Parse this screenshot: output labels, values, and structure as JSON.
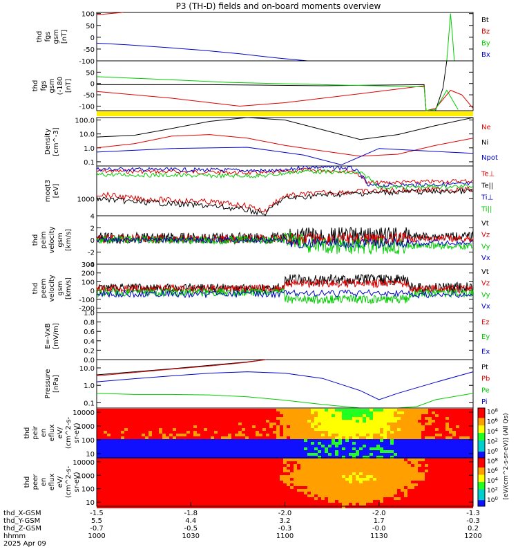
{
  "title": "P3 (TH-D) fields and on-board moments overview",
  "colors": {
    "black": "#000000",
    "red": "#dd0000",
    "green": "#00cc00",
    "blue": "#0000cc",
    "yellow": "#ffee00"
  },
  "chart_data": [
    {
      "type": "line",
      "panel": "fgs",
      "ylabel": [
        "thd",
        "fgs",
        "gsm",
        "[nT]"
      ],
      "yticks": [
        100,
        50,
        0,
        -50,
        -100
      ],
      "ylim": [
        -100,
        105
      ],
      "legend": [
        {
          "label": "Bt",
          "color": "black"
        },
        {
          "label": "Bz",
          "color": "red"
        },
        {
          "label": "By",
          "color": "green"
        },
        {
          "label": "Bx",
          "color": "blue"
        }
      ],
      "series": [
        {
          "name": "Bz",
          "color": "red",
          "x": [
            0,
            0.07
          ],
          "y": [
            95,
            105
          ]
        },
        {
          "name": "Bx",
          "color": "blue",
          "x": [
            0,
            0.08,
            0.18,
            0.28,
            0.38,
            0.48,
            0.56
          ],
          "y": [
            -25,
            -32,
            -43,
            -55,
            -70,
            -88,
            -100
          ]
        },
        {
          "name": "By",
          "color": "green",
          "x": [
            0.93,
            0.935,
            0.94,
            0.945,
            0.95
          ],
          "y": [
            -100,
            0,
            100,
            10,
            -100
          ]
        }
      ]
    },
    {
      "type": "line",
      "panel": "fgs-zoom",
      "ylabel": [
        "thd",
        "fgs",
        "gsm",
        "(-180",
        "[nT]"
      ],
      "yticks": [
        50,
        0,
        -50,
        -100
      ],
      "ylim": [
        -120,
        100
      ],
      "series": [
        {
          "name": "Bt",
          "color": "black",
          "x": [
            0,
            0.3,
            0.6,
            0.87,
            0.875,
            0.9,
            0.92,
            0.93
          ],
          "y": [
            -5,
            -5,
            -10,
            -5,
            -120,
            -120,
            -20,
            100
          ]
        },
        {
          "name": "Bz",
          "color": "red",
          "x": [
            0,
            0.2,
            0.38,
            0.5,
            0.7,
            0.87,
            0.875,
            0.9,
            0.94,
            0.97,
            1
          ],
          "y": [
            -35,
            -65,
            -100,
            -85,
            -45,
            -10,
            -120,
            -110,
            -30,
            -50,
            -110
          ]
        },
        {
          "name": "By",
          "color": "green",
          "x": [
            0,
            0.15,
            0.35,
            0.6,
            0.87,
            0.875,
            0.9,
            0.93,
            0.96
          ],
          "y": [
            30,
            20,
            5,
            -5,
            -15,
            -120,
            -115,
            -30,
            -115
          ]
        }
      ]
    },
    {
      "type": "line",
      "panel": "density",
      "log": true,
      "ylabel": [
        "Density",
        "[cm^-3]"
      ],
      "yticks": [
        "100.0",
        "10.0",
        "1.0",
        "0.1"
      ],
      "ylim": [
        0.05,
        150
      ],
      "legend": [
        {
          "label": "Ne",
          "color": "red"
        },
        {
          "label": "Ni",
          "color": "black"
        },
        {
          "label": "Npot",
          "color": "blue"
        }
      ],
      "series": [
        {
          "name": "Ni",
          "color": "black",
          "x": [
            0,
            0.1,
            0.2,
            0.3,
            0.4,
            0.5,
            0.6,
            0.7,
            0.8,
            0.9,
            1
          ],
          "y": [
            6,
            8,
            25,
            80,
            150,
            100,
            20,
            4,
            9,
            40,
            150
          ]
        },
        {
          "name": "Ne",
          "color": "red",
          "x": [
            0,
            0.1,
            0.2,
            0.3,
            0.4,
            0.5,
            0.6,
            0.7,
            0.8,
            0.9,
            1
          ],
          "y": [
            1,
            2,
            7,
            9,
            5,
            1.5,
            0.6,
            0.25,
            0.35,
            1.5,
            5
          ]
        },
        {
          "name": "Npot",
          "color": "blue",
          "x": [
            0,
            0.2,
            0.4,
            0.55,
            0.65,
            0.75,
            1
          ],
          "y": [
            0.5,
            0.9,
            1.1,
            0.3,
            0.06,
            0.9,
            0.4
          ]
        }
      ]
    },
    {
      "type": "line",
      "panel": "temperature",
      "log": true,
      "ylabel": [
        "moqt3",
        "[eV]"
      ],
      "yticks": [
        "1000"
      ],
      "ylim": [
        300,
        10000
      ],
      "legend": [
        {
          "label": "Te⊥",
          "color": "red"
        },
        {
          "label": "Te||",
          "color": "black"
        },
        {
          "label": "Ti⊥",
          "color": "blue"
        },
        {
          "label": "Ti||",
          "color": "green"
        }
      ]
    },
    {
      "type": "line",
      "panel": "velocity-esa-i",
      "ylabel": [
        "thd",
        "peim",
        "velocity",
        "gsm",
        "[km/s]"
      ],
      "yticks": [
        4,
        2,
        0,
        -2,
        -4
      ],
      "ylim": [
        -4,
        4
      ],
      "legend": [
        {
          "label": "Vt",
          "color": "black"
        },
        {
          "label": "Vz",
          "color": "red"
        },
        {
          "label": "Vy",
          "color": "green"
        },
        {
          "label": "Vx",
          "color": "blue"
        }
      ]
    },
    {
      "type": "line",
      "panel": "velocity-esa-e",
      "ylabel": [
        "thd",
        "peem",
        "velocity",
        "gsm",
        "[km/s]"
      ],
      "yticks": [
        300,
        200,
        100,
        0,
        -100,
        -200
      ],
      "ylim": [
        -250,
        300
      ],
      "legend": [
        {
          "label": "Vt",
          "color": "black"
        },
        {
          "label": "Vz",
          "color": "red"
        },
        {
          "label": "Vy",
          "color": "green"
        },
        {
          "label": "Vx",
          "color": "blue"
        }
      ]
    },
    {
      "type": "line",
      "panel": "efield",
      "ylabel": [
        "E=-VxB",
        "[mV/m]"
      ],
      "yticks": [
        "1.0",
        "0.8",
        "0.6",
        "0.4",
        "0.2",
        "0.0"
      ],
      "ylim": [
        0,
        1
      ],
      "legend": [
        {
          "label": "Ez",
          "color": "red"
        },
        {
          "label": "Ey",
          "color": "green"
        },
        {
          "label": "Ex",
          "color": "blue"
        }
      ]
    },
    {
      "type": "line",
      "panel": "pressure",
      "log": true,
      "ylabel": [
        "Pressure",
        "[nPa]"
      ],
      "yticks": [
        "10.0",
        "1.0",
        "0.1"
      ],
      "ylim": [
        0.05,
        30
      ],
      "legend": [
        {
          "label": "Pt",
          "color": "black"
        },
        {
          "label": "Pb",
          "color": "red"
        },
        {
          "label": "Pe",
          "color": "green"
        },
        {
          "label": "Pi",
          "color": "blue"
        }
      ],
      "series": [
        {
          "name": "Pt",
          "color": "black",
          "x": [
            0,
            0.1,
            0.2,
            0.3,
            0.4,
            0.45
          ],
          "y": [
            4,
            6,
            9,
            14,
            22,
            30
          ]
        },
        {
          "name": "Pb",
          "color": "red",
          "x": [
            0,
            0.1,
            0.2,
            0.3,
            0.4,
            0.45
          ],
          "y": [
            3.5,
            5.5,
            8.5,
            13,
            21,
            30
          ]
        },
        {
          "name": "Pi",
          "color": "blue",
          "x": [
            0,
            0.1,
            0.2,
            0.3,
            0.4,
            0.5,
            0.6,
            0.7,
            0.75,
            0.8,
            0.9,
            1
          ],
          "y": [
            1.6,
            2.4,
            3.5,
            5,
            6,
            5,
            2.5,
            0.5,
            0.15,
            0.35,
            1.5,
            6
          ]
        },
        {
          "name": "Pe",
          "color": "green",
          "x": [
            0,
            0.1,
            0.2,
            0.3,
            0.4,
            0.5,
            0.6,
            0.7,
            0.8,
            0.85,
            0.9,
            1
          ],
          "y": [
            0.35,
            0.3,
            0.3,
            0.28,
            0.22,
            0.14,
            0.08,
            0.05,
            0.05,
            0.06,
            0.15,
            0.35
          ]
        }
      ]
    },
    {
      "type": "heatmap",
      "panel": "ion-spectrogram",
      "log": true,
      "ylabel": [
        "thd",
        "peir",
        "en",
        "eflux",
        "eV/",
        "(cm^2-s-",
        "sr-eV)"
      ],
      "yticks": [
        "10000",
        "1000",
        "100",
        "10"
      ],
      "ylim": [
        5,
        20000
      ]
    },
    {
      "type": "heatmap",
      "panel": "electron-spectrogram",
      "log": true,
      "ylabel": [
        "thd",
        "peer",
        "en",
        "eflux",
        "eV/",
        "(cm^2-s-",
        "sr-eV)"
      ],
      "yticks": [
        "10000",
        "1000",
        "100",
        "10"
      ],
      "ylim": [
        5,
        20000
      ]
    }
  ],
  "colorbar": {
    "label": "[eV/(cm^2-s-sr-eV)]",
    "label_suffix": "(All Qs)",
    "ticks_upper": [
      "10^8",
      "10^6",
      "10^4",
      "10^2",
      "10^0"
    ],
    "ticks_lower": [
      "10^8",
      "10^6",
      "10^4",
      "10^2",
      "10^0"
    ]
  },
  "xaxis": {
    "row_labels": [
      "thd_X-GSM",
      "thd_Y-GSM",
      "thd_Z-GSM",
      "hhmm",
      "2025 Apr 09"
    ],
    "ticks": [
      {
        "x": 0,
        "X": "-1.5",
        "Y": "5.5",
        "Z": "-0.7",
        "hhmm": "1000"
      },
      {
        "x": 0.25,
        "X": "-1.8",
        "Y": "4.4",
        "Z": "-0.5",
        "hhmm": "1030"
      },
      {
        "x": 0.5,
        "X": "-2.0",
        "Y": "3.2",
        "Z": "-0.3",
        "hhmm": "1100"
      },
      {
        "x": 0.75,
        "X": "-2.0",
        "Y": "1.7",
        "Z": "-0.0",
        "hhmm": "1130"
      },
      {
        "x": 1,
        "X": "-1.3",
        "Y": "-0.3",
        "Z": "0.2",
        "hhmm": "1200"
      }
    ]
  }
}
